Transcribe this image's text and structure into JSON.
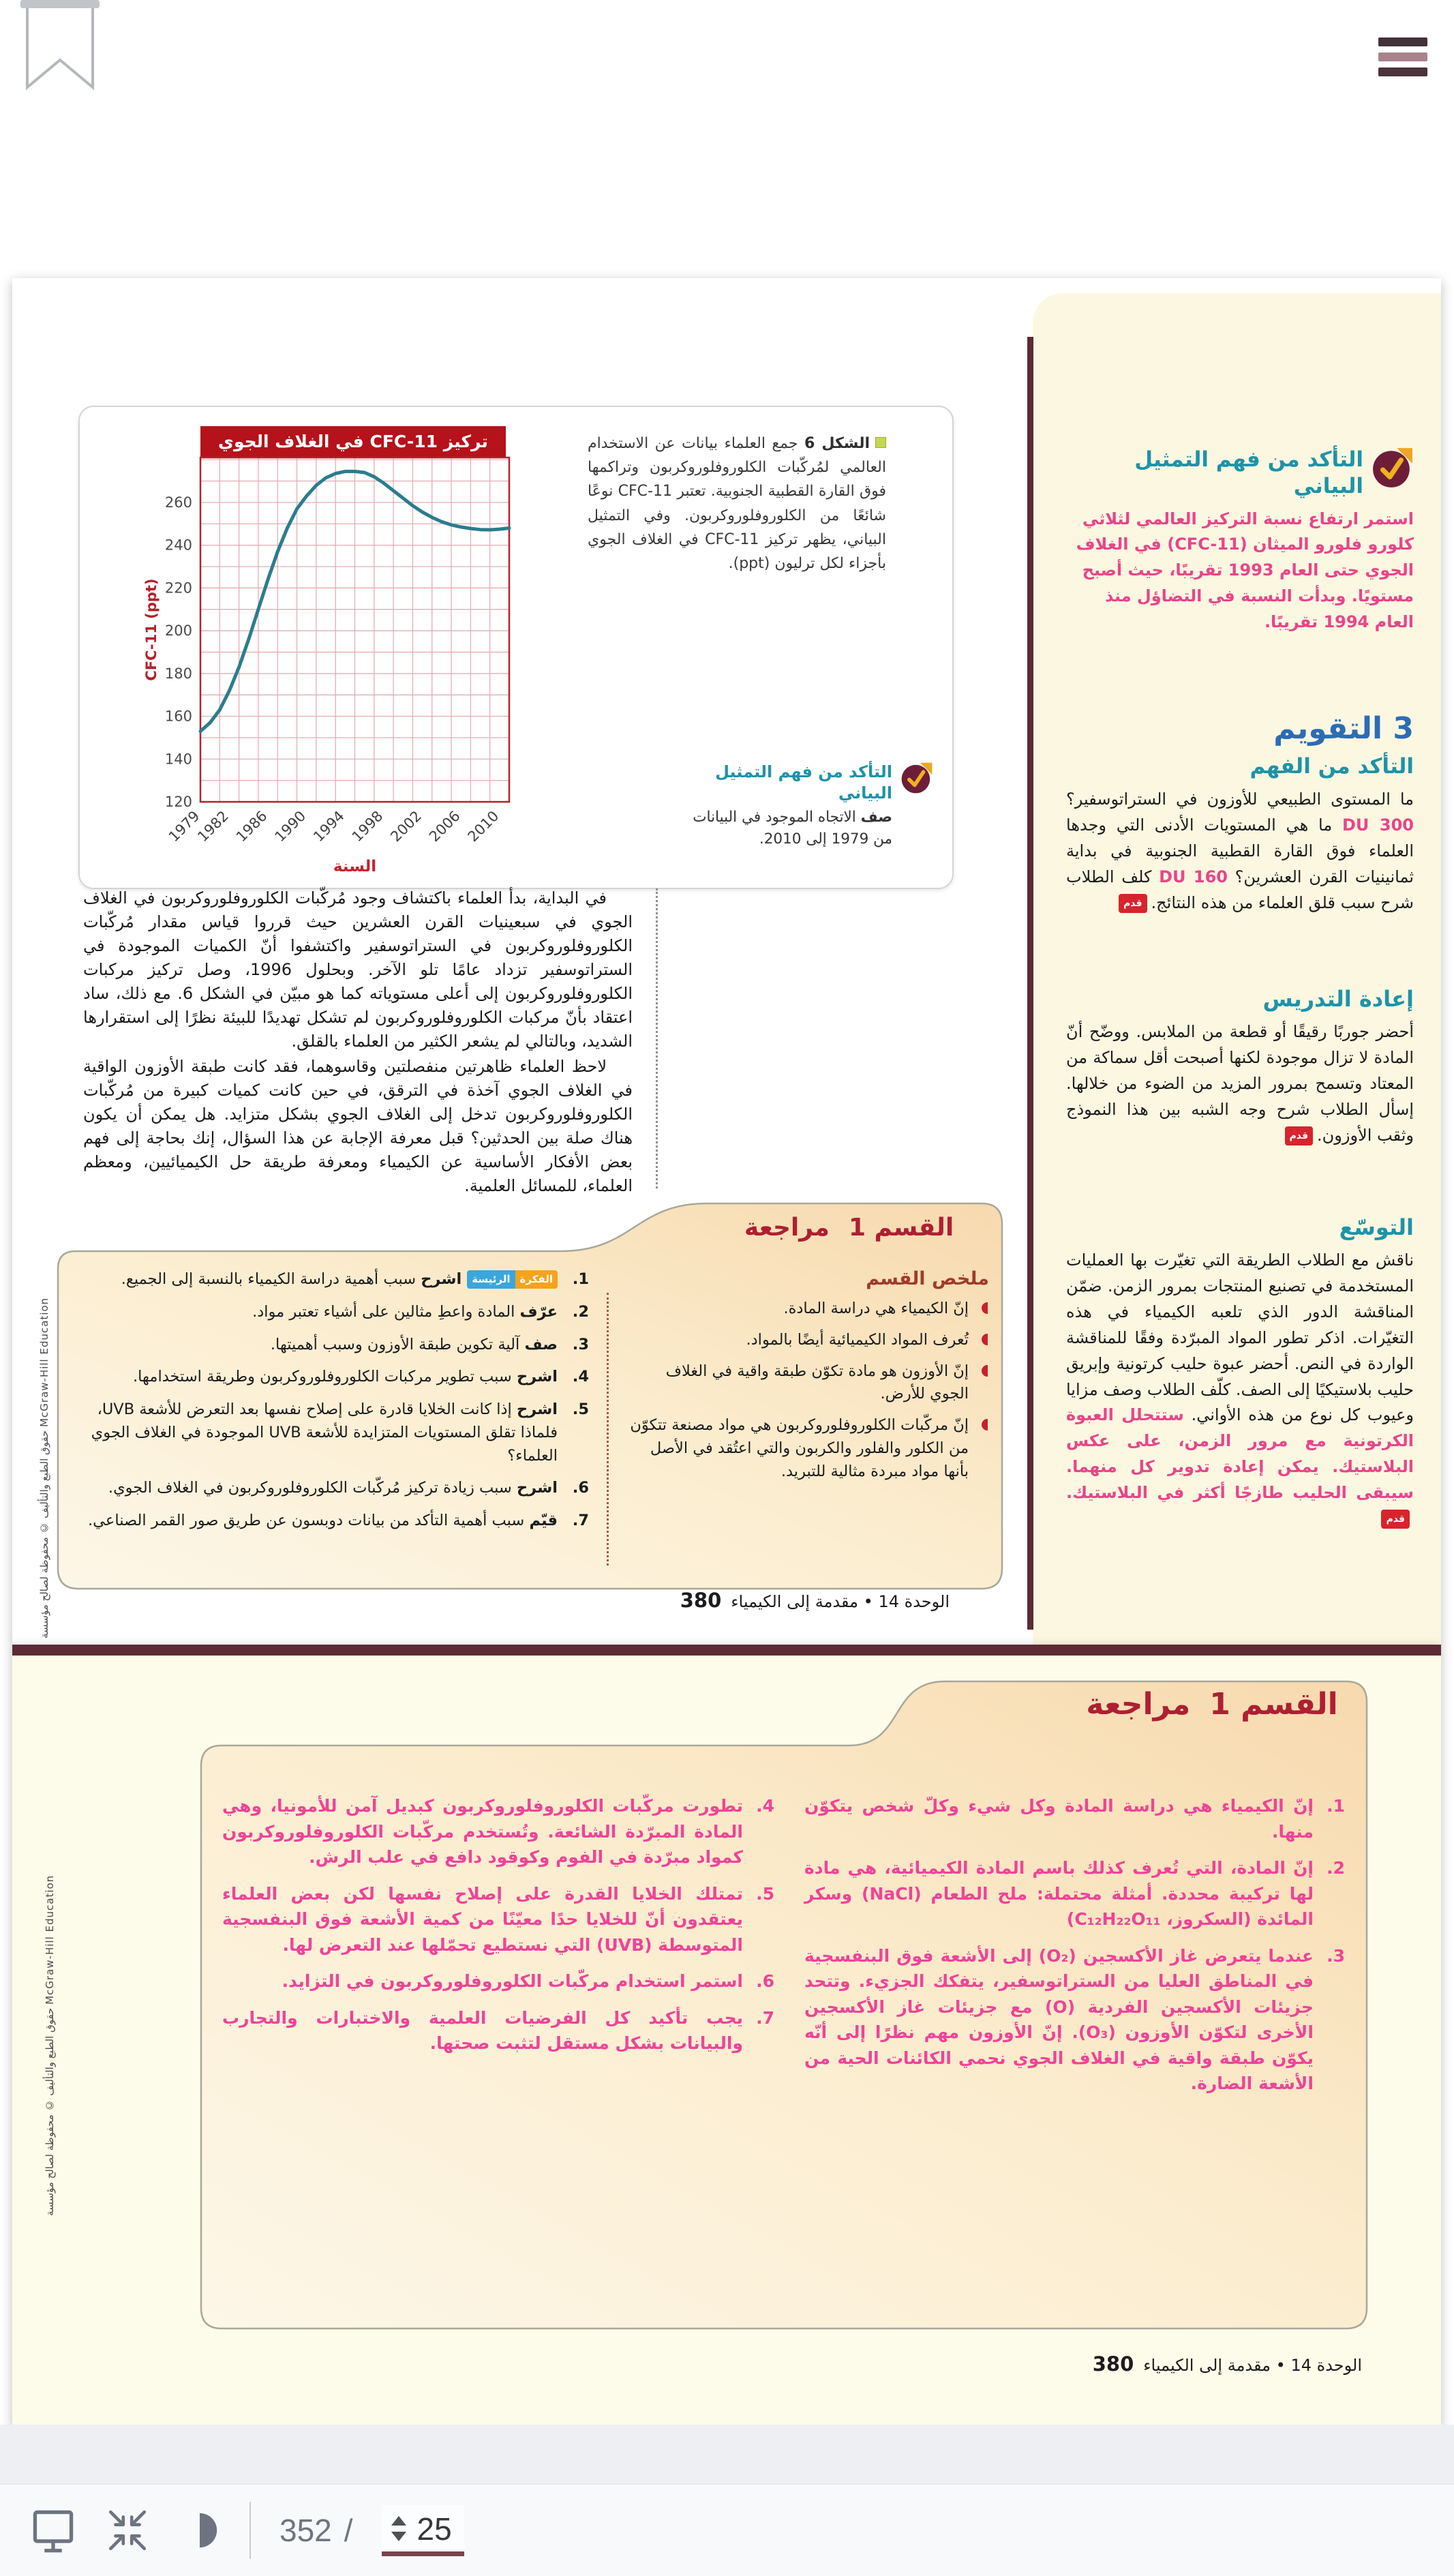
{
  "theme": {
    "accent_maroon": "#5c2b35",
    "banner_red": "#b5121b",
    "teal": "#1e93a8",
    "blue": "#2d6cb5",
    "pink": "#e8458a",
    "review_red": "#ae1f32",
    "cream": "#fcf7e1"
  },
  "chart_data": {
    "type": "line",
    "title": "تركيز CFC-11 في الغلاف الجوي",
    "xlabel": "السنة",
    "ylabel": "CFC-11 (ppt)",
    "xlim": [
      1979,
      2011
    ],
    "ylim": [
      120,
      281
    ],
    "x_ticks": [
      1979,
      1982,
      1986,
      1990,
      1994,
      1998,
      2002,
      2006,
      2010
    ],
    "y_ticks": [
      120,
      140,
      160,
      180,
      200,
      220,
      240,
      260
    ],
    "grid": true,
    "line_color": "#2a7d8d",
    "series": [
      {
        "name": "CFC-11",
        "x": [
          1979,
          1980,
          1981,
          1982,
          1983,
          1984,
          1985,
          1986,
          1987,
          1988,
          1989,
          1990,
          1991,
          1992,
          1993,
          1994,
          1995,
          1996,
          1997,
          1998,
          1999,
          2000,
          2001,
          2002,
          2003,
          2004,
          2005,
          2006,
          2007,
          2008,
          2009,
          2010,
          2011
        ],
        "y": [
          153,
          157,
          163,
          172,
          183,
          196,
          210,
          224,
          237,
          248,
          257,
          263,
          268,
          271.5,
          273.5,
          274.5,
          274.5,
          274,
          272,
          269,
          265.5,
          262,
          258.5,
          255.5,
          253,
          251,
          249.5,
          248.5,
          247.8,
          247.3,
          247.2,
          247.5,
          248
        ]
      }
    ]
  },
  "page1": {
    "figure": {
      "caption_label": "الشكل 6",
      "caption_text": "جمع العلماء بيانات عن الاستخدام العالمي لمُركّبات الكلوروفلوروكربون وتراكمها فوق القارة القطبية الجنوبية. تعتبر CFC-11 نوعًا شائعًا من الكلوروفلوروكربون. وفي التمثيل البياني، يظهر تركيز CFC-11 في الغلاف الجوي بأجزاء لكل ترليون (ppt).",
      "check_heading": "التأكد من فهم التمثيل البياني",
      "check_verb": "صف",
      "check_text": "الاتجاه الموجود في البيانات من 1979 إلى 2010."
    },
    "body": {
      "p1": "في البداية، بدأ العلماء باكتشاف وجود مُركّبات الكلوروفلوروكربون في الغلاف الجوي في سبعينيات القرن العشرين حيث قرروا قياس مقدار مُركّبات الكلوروفلوروكربون في الستراتوسفير واكتشفوا أنّ الكميات الموجودة في الستراتوسفير تزداد عامًا تلو الآخر. وبحلول 1996، وصل تركيز مركبات الكلوروفلوروكربون إلى أعلى مستوياته كما هو مبيّن في الشكل 6. مع ذلك، ساد اعتقاد بأنّ مركبات الكلوروفلوروكربون لم تشكل تهديدًا للبيئة نظرًا إلى استقرارها الشديد، وبالتالي لم يشعر الكثير من العلماء بالقلق.",
      "p2": "لاحظ العلماء ظاهرتين منفصلتين وقاسوهما، فقد كانت طبقة الأوزون الواقية في الغلاف الجوي آخذة في الترقق، في حين كانت كميات كبيرة من مُركّبات الكلوروفلوروكربون تدخل إلى الغلاف الجوي بشكل متزايد. هل يمكن أن يكون هناك صلة بين الحدثين؟ قبل معرفة الإجابة عن هذا السؤال، إنك بحاجة إلى فهم بعض الأفكار الأساسية عن الكيمياء ومعرفة طريقة حل الكيميائيين، ومعظم العلماء، للمسائل العلمية."
    },
    "review": {
      "title_part1": "القسم 1",
      "title_part2": "مراجعة",
      "summary_heading": "ملخص القسم",
      "summary_items": [
        "إنّ الكيمياء هي دراسة المادة.",
        "تُعرف المواد الكيميائية أيضًا بالمواد.",
        "إنّ الأوزون هو مادة تكوّن طبقة واقية في الغلاف الجوي للأرض.",
        "إنّ مركّبات الكلوروفلوروكربون هي مواد مصنعة تتكوّن من الكلور والفلور والكربون والتي اعتُقد في الأصل بأنها مواد مبردة مثالية للتبريد."
      ],
      "badge_orange": "الفكرة",
      "badge_blue": "الرئيسة",
      "questions": [
        {
          "num": "1.",
          "verb": "اشرح",
          "text": "سبب أهمية دراسة الكيمياء بالنسبة إلى الجميع."
        },
        {
          "num": "2.",
          "verb": "عرّف",
          "text": "المادة واعطِ مثالين على أشياء تعتبر مواد."
        },
        {
          "num": "3.",
          "verb": "صف",
          "text": "آلية تكوين طبقة الأوزون وسبب أهميتها."
        },
        {
          "num": "4.",
          "verb": "اشرح",
          "text": "سبب تطوير مركبات الكلوروفلوروكربون وطريقة استخدامها."
        },
        {
          "num": "5.",
          "verb": "اشرح",
          "text": "إذا كانت الخلايا قادرة على إصلاح نفسها بعد التعرض للأشعة UVB، فلماذا تقلق المستويات المتزايدة للأشعة UVB الموجودة في الغلاف الجوي العلماء؟"
        },
        {
          "num": "6.",
          "verb": "اشرح",
          "text": "سبب زيادة تركيز مُركّبات الكلوروفلوروكربون في الغلاف الجوي."
        },
        {
          "num": "7.",
          "verb": "قيّم",
          "text": "سبب أهمية التأكد من بيانات دوبسون عن طريق صور القمر الصناعي."
        }
      ]
    },
    "footer": {
      "num": "380",
      "label": "الوحدة 14 • مقدمة إلى الكيمياء"
    }
  },
  "sidebar": {
    "badge_label": "قدم",
    "check_graph": {
      "heading": "التأكد من فهم التمثيل البياني",
      "body": "استمر ارتفاع نسبة التركيز العالمي لثلاثي كلورو فلورو الميثان (CFC-11) في الغلاف الجوي حتى العام 1993 تقريبًا، حيث أصبح مستويًا. وبدأت النسبة في التضاؤل منذ العام 1994 تقريبًا."
    },
    "assess": {
      "heading": "3 التقويم",
      "sub": "التأكد من الفهم",
      "q1": "ما المستوى الطبيعي للأوزون في الستراتوسفير؟ ",
      "a1": "300 DU",
      "q2": " ما هي المستويات الأدنى التي وجدها العلماء فوق القارة القطبية الجنوبية في بداية ثمانينيات القرن العشرين؟ ",
      "a2": "160 DU",
      "tail": " كلف الطلاب شرح سبب قلق العلماء من هذه النتائج."
    },
    "reteach": {
      "heading": "إعادة التدريس",
      "body": "أحضر جوربًا رقيقًا أو قطعة من الملابس. ووضّح أنّ المادة لا تزال موجودة لكنها أصبحت أقل سماكة من المعتاد وتسمح بمرور المزيد من الضوء من خلالها. إسأل الطلاب شرح وجه الشبه بين هذا النموذج وثقب الأوزون."
    },
    "extend": {
      "heading": "التوسّع",
      "body_black": "ناقش مع الطلاب الطريقة التي تغيّرت بها العمليات المستخدمة في تصنيع المنتجات بمرور الزمن. ضمّن المناقشة الدور الذي تلعبه الكيمياء في هذه التغيّرات. اذكر تطور المواد المبرّدة وفقًا للمناقشة الواردة في النص. أحضر عبوة حليب كرتونية وإبريق حليب بلاستيكيًا إلى الصف. كلّف الطلاب وصف مزايا وعيوب كل نوع من هذه الأواني. ",
      "body_pink": "ستتحلل العبوة الكرتونية مع مرور الزمن، على عكس البلاستيك. يمكن إعادة تدوير كل منهما. سيبقى الحليب طازجًا أكثر في البلاستيك."
    }
  },
  "page2": {
    "review": {
      "title_part1": "القسم 1",
      "title_part2": "مراجعة"
    },
    "answers_right": [
      {
        "num": "1.",
        "text": "إنّ الكيمياء هي دراسة المادة وكل شيء وكلّ شخص يتكوّن منها."
      },
      {
        "num": "2.",
        "text": "إنّ المادة، التي تُعرف كذلك باسم المادة الكيميائية، هي مادة لها تركيبة محددة. أمثلة محتملة: ملح الطعام (NaCl) وسكر المائدة (السكروز، C₁₂H₂₂O₁₁)"
      },
      {
        "num": "3.",
        "text": "عندما يتعرض غاز الأكسجين (O₂) إلى الأشعة فوق البنفسجية في المناطق العليا من الستراتوسفير، يتفكك الجزيء. وتتحد جزيئات الأكسجين الفردية (O) مع جزيئات غاز الأكسجين الأخرى لتكوّن الأوزون (O₃). إنّ الأوزون مهم نظرًا إلى أنّه يكوّن طبقة واقية في الغلاف الجوي نحمي الكائنات الحية من الأشعة الضارة."
      }
    ],
    "answers_left": [
      {
        "num": "4.",
        "text": "تطورت مركّبات الكلوروفلوروكربون كبديل آمن للأمونيا، وهي المادة المبرّدة الشائعة. وتُستخدم مركّبات الكلوروفلوروكربون كمواد مبرّدة في الفوم وكوقود دافع في علب الرش."
      },
      {
        "num": "5.",
        "text": "تمتلك الخلايا القدرة على إصلاح نفسها لكن بعض العلماء يعتقدون أنّ للخلايا حدًا معيّنًا من كمية الأشعة فوق البنفسجية المتوسطة (UVB) التي نستطيع تحمّلها عند التعرض لها."
      },
      {
        "num": "6.",
        "text": "استمر استخدام مركّبات الكلوروفلوروكربون في التزايد."
      },
      {
        "num": "7.",
        "text": "يجب تأكيد كل الفرضيات العلمية والاختبارات والتجارب والبيانات بشكل مستقل لتثبت صحتها."
      }
    ],
    "footer": {
      "num": "380",
      "label": "الوحدة 14 • مقدمة إلى الكيمياء"
    }
  },
  "copyright_vertical": "حقوق الطبع والتأليف © محفوظة لصالح مؤسسة McGraw-Hill Education",
  "toolbar": {
    "page_total": "352",
    "separator": "/",
    "page_value": "25"
  }
}
